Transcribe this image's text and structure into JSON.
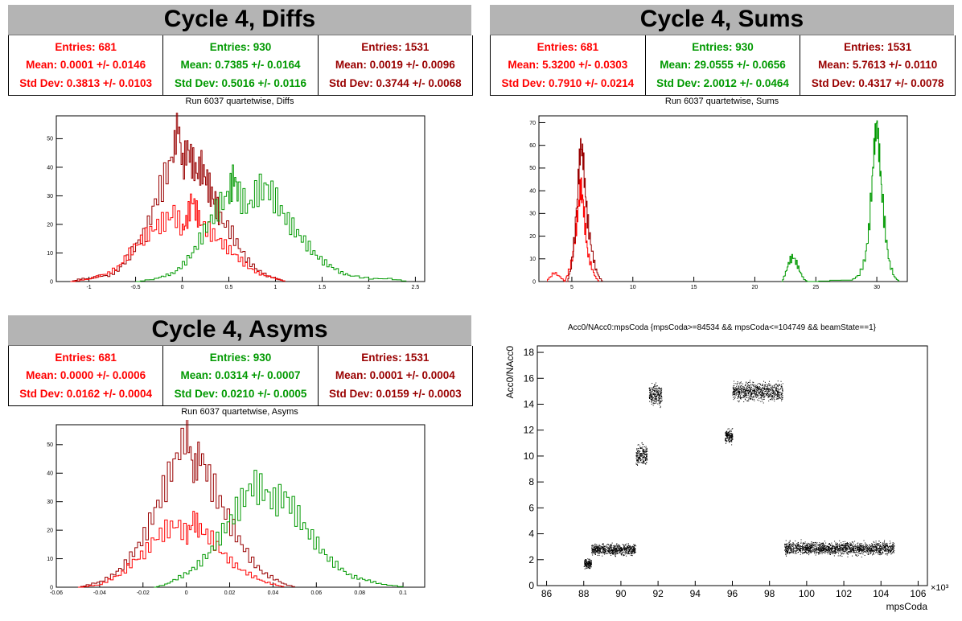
{
  "colors": {
    "red": "#ff0000",
    "green": "#009900",
    "dark": "#990000"
  },
  "diffs": {
    "title": "Cycle 4, Diffs",
    "subtitle": "Run 6037 quartetwise, Diffs",
    "stats": [
      {
        "entries": "Entries: 681",
        "mean": "Mean: 0.0001 +/- 0.0146",
        "std": "Std Dev: 0.3813 +/- 0.0103"
      },
      {
        "entries": "Entries: 930",
        "mean": "Mean: 0.7385 +/- 0.0164",
        "std": "Std Dev: 0.5016 +/- 0.0116"
      },
      {
        "entries": "Entries: 1531",
        "mean": "Mean: 0.0019 +/- 0.0096",
        "std": "Std Dev: 0.3744 +/- 0.0068"
      }
    ]
  },
  "sums": {
    "title": "Cycle 4, Sums",
    "subtitle": "Run 6037 quartetwise, Sums",
    "stats": [
      {
        "entries": "Entries: 681",
        "mean": "Mean: 5.3200 +/- 0.0303",
        "std": "Std Dev: 0.7910 +/- 0.0214"
      },
      {
        "entries": "Entries: 930",
        "mean": "Mean: 29.0555 +/- 0.0656",
        "std": "Std Dev: 2.0012 +/- 0.0464"
      },
      {
        "entries": "Entries: 1531",
        "mean": "Mean: 5.7613 +/- 0.0110",
        "std": "Std Dev: 0.4317 +/- 0.0078"
      }
    ]
  },
  "asyms": {
    "title": "Cycle 4, Asyms",
    "subtitle": "Run 6037 quartetwise, Asyms",
    "stats": [
      {
        "entries": "Entries: 681",
        "mean": "Mean: 0.0000 +/- 0.0006",
        "std": "Std Dev: 0.0162 +/- 0.0004"
      },
      {
        "entries": "Entries: 930",
        "mean": "Mean: 0.0314 +/- 0.0007",
        "std": "Std Dev: 0.0210 +/- 0.0005"
      },
      {
        "entries": "Entries: 1531",
        "mean": "Mean: 0.0001 +/- 0.0004",
        "std": "Std Dev: 0.0159 +/- 0.0003"
      }
    ]
  },
  "scatter": {
    "title": "Acc0/NAcc0:mpsCoda {mpsCoda>=84534 && mpsCoda<=104749 && beamState==1}",
    "ylabel": "Acc0/NAcc0",
    "xlabel": "mpsCoda",
    "multiplier": "×10³"
  },
  "chart_data": [
    {
      "type": "histogram",
      "name": "diffs",
      "xlim": [
        -1.35,
        2.6
      ],
      "ylim": [
        0,
        58
      ],
      "xticks": [
        "-1",
        "-0.5",
        "0",
        "0.5",
        "1",
        "1.5",
        "2",
        "2.5"
      ],
      "xtick_values": [
        -1,
        -0.5,
        0,
        0.5,
        1,
        1.5,
        2,
        2.5
      ],
      "yticks": [
        "0",
        "10",
        "20",
        "30",
        "40",
        "50"
      ],
      "ytick_values": [
        0,
        10,
        20,
        30,
        40,
        50
      ],
      "series": [
        {
          "color": "#990000",
          "bins": [
            [
              -1.2,
              0
            ],
            [
              -1.1,
              1
            ],
            [
              -1.0,
              1
            ],
            [
              -0.9,
              2
            ],
            [
              -0.8,
              2
            ],
            [
              -0.7,
              4
            ],
            [
              -0.6,
              8
            ],
            [
              -0.5,
              13
            ],
            [
              -0.4,
              17
            ],
            [
              -0.3,
              28
            ],
            [
              -0.2,
              36
            ],
            [
              -0.1,
              45
            ],
            [
              -0.05,
              56
            ],
            [
              0.0,
              40
            ],
            [
              0.05,
              47
            ],
            [
              0.1,
              42
            ],
            [
              0.15,
              38
            ],
            [
              0.2,
              40
            ],
            [
              0.25,
              36
            ],
            [
              0.3,
              31
            ],
            [
              0.35,
              28
            ],
            [
              0.4,
              22
            ],
            [
              0.5,
              18
            ],
            [
              0.6,
              12
            ],
            [
              0.7,
              7
            ],
            [
              0.8,
              4
            ],
            [
              0.9,
              2
            ],
            [
              1.0,
              1
            ],
            [
              1.1,
              0
            ]
          ]
        },
        {
          "color": "#ff0000",
          "bins": [
            [
              -1.2,
              0
            ],
            [
              -1.0,
              1
            ],
            [
              -0.9,
              2
            ],
            [
              -0.8,
              3
            ],
            [
              -0.7,
              5
            ],
            [
              -0.6,
              9
            ],
            [
              -0.5,
              13
            ],
            [
              -0.4,
              16
            ],
            [
              -0.3,
              19
            ],
            [
              -0.2,
              21
            ],
            [
              -0.1,
              24
            ],
            [
              0.0,
              18
            ],
            [
              0.05,
              22
            ],
            [
              0.1,
              29
            ],
            [
              0.15,
              24
            ],
            [
              0.2,
              20
            ],
            [
              0.3,
              17
            ],
            [
              0.4,
              14
            ],
            [
              0.5,
              11
            ],
            [
              0.6,
              8
            ],
            [
              0.7,
              5
            ],
            [
              0.8,
              3
            ],
            [
              0.9,
              2
            ],
            [
              1.0,
              1
            ],
            [
              1.1,
              0
            ]
          ]
        },
        {
          "color": "#009900",
          "bins": [
            [
              -0.5,
              0
            ],
            [
              -0.3,
              1
            ],
            [
              -0.2,
              2
            ],
            [
              -0.1,
              3
            ],
            [
              0.0,
              6
            ],
            [
              0.1,
              10
            ],
            [
              0.2,
              16
            ],
            [
              0.3,
              22
            ],
            [
              0.4,
              27
            ],
            [
              0.5,
              31
            ],
            [
              0.55,
              37
            ],
            [
              0.6,
              30
            ],
            [
              0.7,
              26
            ],
            [
              0.8,
              32
            ],
            [
              0.9,
              33
            ],
            [
              1.0,
              28
            ],
            [
              1.1,
              22
            ],
            [
              1.2,
              18
            ],
            [
              1.3,
              14
            ],
            [
              1.4,
              10
            ],
            [
              1.5,
              7
            ],
            [
              1.6,
              5
            ],
            [
              1.7,
              3
            ],
            [
              1.8,
              2
            ],
            [
              2.0,
              1
            ],
            [
              2.2,
              1
            ],
            [
              2.4,
              0
            ]
          ]
        }
      ]
    },
    {
      "type": "histogram",
      "name": "sums",
      "xlim": [
        2.3,
        32.5
      ],
      "ylim": [
        0,
        73
      ],
      "xticks": [
        "5",
        "10",
        "15",
        "20",
        "25",
        "30"
      ],
      "xtick_values": [
        5,
        10,
        15,
        20,
        25,
        30
      ],
      "yticks": [
        "0",
        "10",
        "20",
        "30",
        "40",
        "50",
        "60",
        "70"
      ],
      "ytick_values": [
        0,
        10,
        20,
        30,
        40,
        50,
        60,
        70
      ],
      "series": [
        {
          "color": "#ff0000",
          "bins": [
            [
              3.0,
              1
            ],
            [
              3.5,
              4
            ],
            [
              4.0,
              2
            ],
            [
              4.4,
              0
            ],
            [
              4.6,
              3
            ],
            [
              5.0,
              10
            ],
            [
              5.3,
              22
            ],
            [
              5.5,
              32
            ],
            [
              5.7,
              42
            ],
            [
              5.9,
              35
            ],
            [
              6.1,
              22
            ],
            [
              6.3,
              12
            ],
            [
              6.6,
              6
            ],
            [
              6.9,
              2
            ],
            [
              7.2,
              0
            ]
          ]
        },
        {
          "color": "#990000",
          "bins": [
            [
              4.6,
              0
            ],
            [
              4.9,
              6
            ],
            [
              5.2,
              20
            ],
            [
              5.5,
              45
            ],
            [
              5.7,
              60
            ],
            [
              5.9,
              55
            ],
            [
              6.1,
              38
            ],
            [
              6.3,
              25
            ],
            [
              6.6,
              14
            ],
            [
              6.9,
              6
            ],
            [
              7.2,
              2
            ],
            [
              7.5,
              0
            ]
          ]
        },
        {
          "color": "#009900",
          "bins": [
            [
              22.2,
              0
            ],
            [
              22.5,
              4
            ],
            [
              22.8,
              9
            ],
            [
              23.1,
              11
            ],
            [
              23.4,
              8
            ],
            [
              23.7,
              4
            ],
            [
              24.0,
              1
            ],
            [
              24.3,
              0
            ],
            [
              28.0,
              1
            ],
            [
              28.5,
              3
            ],
            [
              29.0,
              10
            ],
            [
              29.3,
              22
            ],
            [
              29.6,
              45
            ],
            [
              29.8,
              62
            ],
            [
              30.0,
              70
            ],
            [
              30.2,
              55
            ],
            [
              30.4,
              38
            ],
            [
              30.7,
              20
            ],
            [
              31.0,
              8
            ],
            [
              31.4,
              2
            ],
            [
              31.8,
              0
            ]
          ]
        }
      ]
    },
    {
      "type": "histogram",
      "name": "asyms",
      "xlim": [
        -0.06,
        0.11
      ],
      "ylim": [
        0,
        57
      ],
      "xticks": [
        "-0.06",
        "-0.04",
        "-0.02",
        "0",
        "0.02",
        "0.04",
        "0.06",
        "0.08",
        "0.1"
      ],
      "xtick_values": [
        -0.06,
        -0.04,
        -0.02,
        0,
        0.02,
        0.04,
        0.06,
        0.08,
        0.1
      ],
      "yticks": [
        "0",
        "10",
        "20",
        "30",
        "40",
        "50"
      ],
      "ytick_values": [
        0,
        10,
        20,
        30,
        40,
        50
      ],
      "series": [
        {
          "color": "#990000",
          "bins": [
            [
              -0.05,
              0
            ],
            [
              -0.045,
              1
            ],
            [
              -0.04,
              2
            ],
            [
              -0.035,
              4
            ],
            [
              -0.03,
              7
            ],
            [
              -0.025,
              12
            ],
            [
              -0.02,
              18
            ],
            [
              -0.015,
              27
            ],
            [
              -0.01,
              36
            ],
            [
              -0.005,
              46
            ],
            [
              0.0,
              55
            ],
            [
              0.003,
              40
            ],
            [
              0.006,
              47
            ],
            [
              0.01,
              38
            ],
            [
              0.015,
              30
            ],
            [
              0.02,
              22
            ],
            [
              0.025,
              15
            ],
            [
              0.03,
              9
            ],
            [
              0.035,
              5
            ],
            [
              0.04,
              3
            ],
            [
              0.045,
              1
            ],
            [
              0.05,
              0
            ]
          ]
        },
        {
          "color": "#ff0000",
          "bins": [
            [
              -0.05,
              0
            ],
            [
              -0.04,
              1
            ],
            [
              -0.035,
              3
            ],
            [
              -0.03,
              5
            ],
            [
              -0.025,
              9
            ],
            [
              -0.02,
              12
            ],
            [
              -0.015,
              17
            ],
            [
              -0.01,
              20
            ],
            [
              -0.005,
              22
            ],
            [
              0.0,
              18
            ],
            [
              0.003,
              24
            ],
            [
              0.006,
              20
            ],
            [
              0.01,
              18
            ],
            [
              0.015,
              13
            ],
            [
              0.02,
              9
            ],
            [
              0.025,
              6
            ],
            [
              0.03,
              4
            ],
            [
              0.035,
              2
            ],
            [
              0.04,
              1
            ],
            [
              0.045,
              0
            ]
          ]
        },
        {
          "color": "#009900",
          "bins": [
            [
              -0.015,
              0
            ],
            [
              -0.01,
              1
            ],
            [
              -0.005,
              3
            ],
            [
              0.0,
              5
            ],
            [
              0.005,
              8
            ],
            [
              0.01,
              12
            ],
            [
              0.015,
              18
            ],
            [
              0.02,
              24
            ],
            [
              0.025,
              30
            ],
            [
              0.03,
              36
            ],
            [
              0.035,
              34
            ],
            [
              0.04,
              30
            ],
            [
              0.045,
              32
            ],
            [
              0.05,
              26
            ],
            [
              0.055,
              20
            ],
            [
              0.06,
              15
            ],
            [
              0.065,
              10
            ],
            [
              0.07,
              7
            ],
            [
              0.075,
              4
            ],
            [
              0.08,
              3
            ],
            [
              0.085,
              2
            ],
            [
              0.09,
              1
            ],
            [
              0.1,
              0
            ]
          ]
        }
      ]
    },
    {
      "type": "scatter",
      "name": "acc0-vs-mpscoda",
      "xlim": [
        85.5,
        106.5
      ],
      "ylim": [
        0,
        18.5
      ],
      "xticks": [
        "86",
        "88",
        "90",
        "92",
        "94",
        "96",
        "98",
        "100",
        "102",
        "104",
        "106"
      ],
      "xtick_values": [
        86,
        88,
        90,
        92,
        94,
        96,
        98,
        100,
        102,
        104,
        106
      ],
      "yticks": [
        "0",
        "2",
        "4",
        "6",
        "8",
        "10",
        "12",
        "14",
        "16",
        "18"
      ],
      "ytick_values": [
        0,
        2,
        4,
        6,
        8,
        10,
        12,
        14,
        16,
        18
      ],
      "clusters": [
        {
          "x": [
            88.0,
            88.4
          ],
          "y": [
            1.2,
            2.2
          ]
        },
        {
          "x": [
            88.4,
            90.8
          ],
          "y": [
            2.2,
            3.4
          ]
        },
        {
          "x": [
            90.8,
            91.4
          ],
          "y": [
            9.0,
            11.2
          ]
        },
        {
          "x": [
            91.5,
            92.2
          ],
          "y": [
            13.5,
            16.0
          ]
        },
        {
          "x": [
            95.6,
            96.0
          ],
          "y": [
            10.8,
            12.3
          ]
        },
        {
          "x": [
            96.0,
            98.7
          ],
          "y": [
            14.0,
            16.0
          ]
        },
        {
          "x": [
            98.8,
            104.7
          ],
          "y": [
            2.2,
            3.6
          ]
        }
      ]
    }
  ]
}
